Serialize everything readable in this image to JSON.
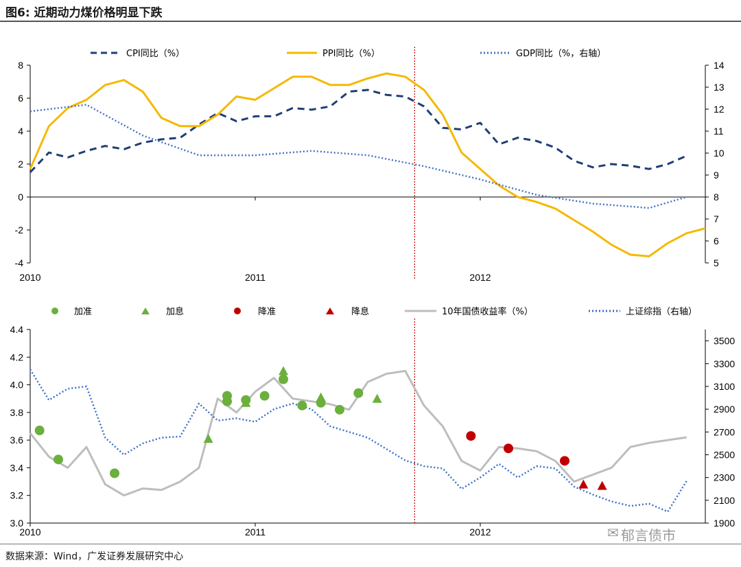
{
  "figure_title": "图6:  近期动力煤价格明显下跌",
  "source_note": "数据来源：Wind，广发证券发展研究中心",
  "watermark": "郁言债市",
  "colors": {
    "cpi": "#1F3E73",
    "ppi": "#F5B800",
    "gdp": "#4472C4",
    "bond": "#BDBDBD",
    "index": "#3A6FC9",
    "hike": "#6BAF3C",
    "cut": "#C00000",
    "divider": "#C00000"
  },
  "chart_data": [
    {
      "type": "line",
      "x_axis": {
        "ticks": [
          "2010",
          "2011",
          "2012"
        ],
        "range": [
          "2010-01",
          "2012-12"
        ]
      },
      "y_left": {
        "ticks": [
          "8",
          "6",
          "4",
          "2",
          "0",
          "-2",
          "-4"
        ],
        "range": [
          -4,
          8
        ]
      },
      "y_right": {
        "ticks": [
          "14",
          "13",
          "12",
          "11",
          "10",
          "9",
          "8",
          "7",
          "6",
          "5"
        ],
        "range": [
          5,
          14
        ]
      },
      "divider_x": "2011-09",
      "series": [
        {
          "name": "CPI同比（%）",
          "axis": "left",
          "style": "dashed",
          "values": [
            1.5,
            2.7,
            2.4,
            2.8,
            3.1,
            2.9,
            3.3,
            3.5,
            3.6,
            4.4,
            5.1,
            4.6,
            4.9,
            4.9,
            5.4,
            5.3,
            5.5,
            6.4,
            6.5,
            6.2,
            6.1,
            5.5,
            4.2,
            4.1,
            4.5,
            3.2,
            3.6,
            3.4,
            3.0,
            2.2,
            1.8,
            2.0,
            1.9,
            1.7,
            2.0,
            2.5
          ]
        },
        {
          "name": "PPI同比（%）",
          "axis": "left",
          "style": "solid",
          "values": [
            1.7,
            4.3,
            5.4,
            5.9,
            6.8,
            7.1,
            6.4,
            4.8,
            4.3,
            4.3,
            5.0,
            6.1,
            5.9,
            6.6,
            7.3,
            7.3,
            6.8,
            6.8,
            7.2,
            7.5,
            7.3,
            6.5,
            5.0,
            2.7,
            1.7,
            0.7,
            0.0,
            -0.3,
            -0.7,
            -1.4,
            -2.1,
            -2.9,
            -3.5,
            -3.6,
            -2.8,
            -2.2,
            -1.9
          ]
        },
        {
          "name": "GDP同比（%，右轴）",
          "axis": "right",
          "style": "dotted",
          "x": [
            "2010-01",
            "2010-04",
            "2010-07",
            "2010-10",
            "2011-01",
            "2011-04",
            "2011-07",
            "2011-10",
            "2012-01",
            "2012-04",
            "2012-07",
            "2012-10",
            "2012-12"
          ],
          "values": [
            11.9,
            12.2,
            10.8,
            9.9,
            9.9,
            10.1,
            9.9,
            9.4,
            8.8,
            8.1,
            7.7,
            7.5,
            8.0
          ]
        }
      ]
    },
    {
      "type": "line",
      "x_axis": {
        "ticks": [
          "2010",
          "2011",
          "2012"
        ],
        "range": [
          "2010-01",
          "2012-12"
        ]
      },
      "y_left": {
        "ticks": [
          "4.4",
          "4.2",
          "4.0",
          "3.8",
          "3.6",
          "3.4",
          "3.2",
          "3.0"
        ],
        "range": [
          3.0,
          4.4
        ]
      },
      "y_right": {
        "ticks": [
          "3500",
          "3300",
          "3100",
          "2900",
          "2700",
          "2500",
          "2300",
          "2100",
          "1900"
        ],
        "range": [
          1900,
          3600
        ]
      },
      "divider_x": "2011-09",
      "series": [
        {
          "name": "10年国债收益率（%）",
          "axis": "left",
          "style": "solid",
          "x": [
            "2010-01",
            "2010-02",
            "2010-03",
            "2010-04",
            "2010-05",
            "2010-06",
            "2010-07",
            "2010-08",
            "2010-09",
            "2010-10",
            "2010-11",
            "2010-12",
            "2011-01",
            "2011-02",
            "2011-03",
            "2011-04",
            "2011-05",
            "2011-06",
            "2011-07",
            "2011-08",
            "2011-09",
            "2011-10",
            "2011-11",
            "2011-12",
            "2012-01",
            "2012-02",
            "2012-03",
            "2012-04",
            "2012-05",
            "2012-06",
            "2012-07",
            "2012-08",
            "2012-09",
            "2012-10",
            "2012-11",
            "2012-12"
          ],
          "values": [
            3.65,
            3.48,
            3.4,
            3.55,
            3.28,
            3.2,
            3.25,
            3.24,
            3.3,
            3.4,
            3.9,
            3.8,
            3.95,
            4.05,
            3.9,
            3.88,
            3.86,
            3.82,
            4.02,
            4.08,
            4.1,
            3.85,
            3.7,
            3.45,
            3.38,
            3.55,
            3.54,
            3.52,
            3.45,
            3.3,
            3.35,
            3.4,
            3.55,
            3.58,
            3.6,
            3.62
          ]
        },
        {
          "name": "上证综指（右轴）",
          "axis": "right",
          "style": "dotted",
          "x": [
            "2010-01",
            "2010-02",
            "2010-03",
            "2010-04",
            "2010-05",
            "2010-06",
            "2010-07",
            "2010-08",
            "2010-09",
            "2010-10",
            "2010-11",
            "2010-12",
            "2011-01",
            "2011-02",
            "2011-03",
            "2011-04",
            "2011-05",
            "2011-06",
            "2011-07",
            "2011-08",
            "2011-09",
            "2011-10",
            "2011-11",
            "2011-12",
            "2012-01",
            "2012-02",
            "2012-03",
            "2012-04",
            "2012-05",
            "2012-06",
            "2012-07",
            "2012-08",
            "2012-09",
            "2012-10",
            "2012-11",
            "2012-12"
          ],
          "values": [
            3250,
            2980,
            3080,
            3100,
            2650,
            2500,
            2600,
            2650,
            2660,
            2950,
            2800,
            2820,
            2790,
            2900,
            2950,
            2900,
            2750,
            2700,
            2650,
            2550,
            2450,
            2400,
            2380,
            2200,
            2300,
            2420,
            2300,
            2400,
            2380,
            2220,
            2150,
            2090,
            2050,
            2070,
            2000,
            2270
          ]
        }
      ],
      "events": [
        {
          "name": "加准",
          "marker": "circle",
          "color": "green",
          "x": [
            "2010-01",
            "2010-02",
            "2010-05",
            "2010-11",
            "2010-11",
            "2010-12",
            "2011-01",
            "2011-02",
            "2011-03",
            "2011-04",
            "2011-05",
            "2011-06"
          ],
          "y": [
            3.67,
            3.46,
            3.36,
            3.92,
            3.88,
            3.89,
            3.92,
            4.04,
            3.85,
            3.87,
            3.82,
            3.94
          ]
        },
        {
          "name": "加息",
          "marker": "triangle",
          "color": "green",
          "x": [
            "2010-10",
            "2010-12",
            "2011-02",
            "2011-04",
            "2011-07"
          ],
          "y": [
            3.61,
            3.87,
            4.1,
            3.91,
            3.9
          ]
        },
        {
          "name": "降准",
          "marker": "circle",
          "color": "red",
          "x": [
            "2011-12",
            "2012-02",
            "2012-05"
          ],
          "y": [
            3.63,
            3.54,
            3.45
          ]
        },
        {
          "name": "降息",
          "marker": "triangle",
          "color": "red",
          "x": [
            "2012-06",
            "2012-07"
          ],
          "y": [
            3.28,
            3.27
          ]
        }
      ]
    }
  ]
}
